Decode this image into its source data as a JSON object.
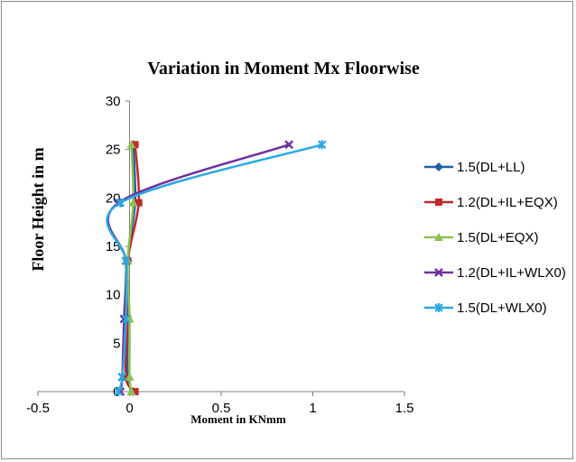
{
  "chart_data": {
    "type": "scatter",
    "title": "Variation in Moment  Mx  Floorwise",
    "xlabel": "Moment in KNmm",
    "ylabel": "Floor Height in m",
    "xlim": [
      -0.5,
      1.5
    ],
    "ylim": [
      0,
      30
    ],
    "xticks": [
      "-0.5",
      "0",
      "0.5",
      "1",
      "1.5"
    ],
    "yticks": [
      "0",
      "5",
      "10",
      "15",
      "20",
      "25",
      "30"
    ],
    "xtick_values": [
      -0.5,
      0,
      0.5,
      1,
      1.5
    ],
    "ytick_values": [
      0,
      5,
      10,
      15,
      20,
      25,
      30
    ],
    "grid": false,
    "legend_position": "right",
    "series": [
      {
        "name": "1.5(DL+LL)",
        "color": "#1f5fa8",
        "marker": "diamond",
        "points": [
          [
            0.02,
            0
          ],
          [
            -0.01,
            1.5
          ],
          [
            -0.01,
            7.5
          ],
          [
            -0.01,
            13.5
          ],
          [
            0.03,
            19.5
          ],
          [
            0.02,
            25.5
          ]
        ]
      },
      {
        "name": "1.2(DL+IL+EQX)",
        "color": "#c0282a",
        "marker": "square",
        "points": [
          [
            0.03,
            0
          ],
          [
            -0.02,
            1.5
          ],
          [
            -0.01,
            7.5
          ],
          [
            -0.01,
            13.5
          ],
          [
            0.05,
            19.5
          ],
          [
            0.03,
            25.5
          ]
        ]
      },
      {
        "name": "1.5(DL+EQX)",
        "color": "#8cc152",
        "marker": "triangle",
        "points": [
          [
            0.01,
            0
          ],
          [
            0.0,
            1.5
          ],
          [
            0.0,
            7.5
          ],
          [
            -0.01,
            13.5
          ],
          [
            0.02,
            19.5
          ],
          [
            0.01,
            25.5
          ]
        ]
      },
      {
        "name": "1.2(DL+IL+WLX0)",
        "color": "#7030a0",
        "marker": "x",
        "points": [
          [
            -0.05,
            0
          ],
          [
            -0.04,
            1.5
          ],
          [
            -0.03,
            7.5
          ],
          [
            -0.02,
            13.5
          ],
          [
            -0.06,
            19.5
          ],
          [
            0.87,
            25.5
          ]
        ]
      },
      {
        "name": "1.5(DL+WLX0)",
        "color": "#2aa8e0",
        "marker": "star",
        "points": [
          [
            -0.06,
            0
          ],
          [
            -0.04,
            1.5
          ],
          [
            -0.02,
            7.5
          ],
          [
            -0.02,
            13.5
          ],
          [
            -0.05,
            19.5
          ],
          [
            1.05,
            25.5
          ]
        ]
      }
    ]
  }
}
